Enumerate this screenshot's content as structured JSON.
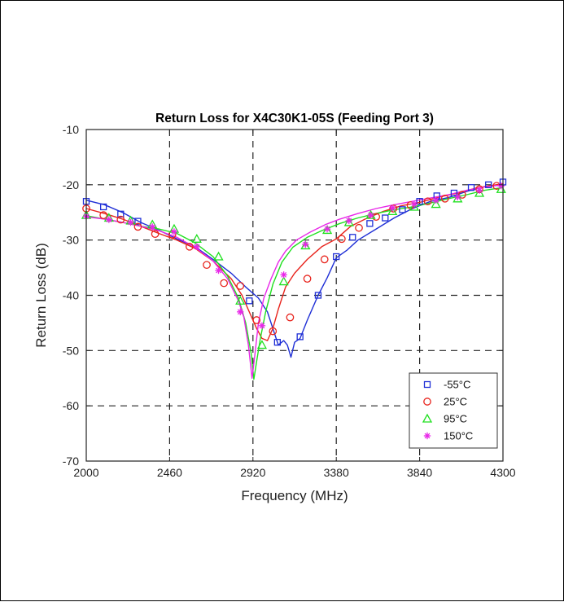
{
  "chart_data": {
    "type": "line",
    "title": "Return Loss for X4C30K1-05S (Feeding Port 3)",
    "xlabel": "Frequency (MHz)",
    "ylabel": "Return Loss (dB)",
    "xlim": [
      2000,
      4300
    ],
    "ylim": [
      -70,
      -10
    ],
    "xticks": [
      2000,
      2460,
      2920,
      3380,
      3840,
      4300
    ],
    "yticks": [
      -70,
      -60,
      -50,
      -40,
      -30,
      -20,
      -10
    ],
    "xtick_labels": [
      "2000",
      "2460",
      "2920",
      "3380",
      "3840",
      "4300"
    ],
    "ytick_labels": [
      "-70",
      "-60",
      "-50",
      "-40",
      "-30",
      "-20",
      "-10"
    ],
    "grid": "dashed",
    "legend_position": "bottom-right",
    "series": [
      {
        "name": "-55°C",
        "color": "#1f2fd6",
        "marker": "square",
        "line": [
          [
            2000,
            -22.8
          ],
          [
            2100,
            -23.6
          ],
          [
            2200,
            -25
          ],
          [
            2300,
            -26.8
          ],
          [
            2400,
            -28.2
          ],
          [
            2500,
            -29.8
          ],
          [
            2600,
            -31.2
          ],
          [
            2700,
            -33.5
          ],
          [
            2800,
            -36
          ],
          [
            2880,
            -38.5
          ],
          [
            2950,
            -40.5
          ],
          [
            3000,
            -43
          ],
          [
            3040,
            -47
          ],
          [
            3060,
            -49
          ],
          [
            3090,
            -48.2
          ],
          [
            3110,
            -49
          ],
          [
            3130,
            -51.2
          ],
          [
            3150,
            -48.5
          ],
          [
            3180,
            -47.8
          ],
          [
            3220,
            -44.5
          ],
          [
            3280,
            -40
          ],
          [
            3330,
            -36.8
          ],
          [
            3380,
            -33.2
          ],
          [
            3440,
            -31.8
          ],
          [
            3500,
            -30
          ],
          [
            3600,
            -28
          ],
          [
            3700,
            -26
          ],
          [
            3800,
            -24.3
          ],
          [
            3900,
            -23
          ],
          [
            4000,
            -22.3
          ],
          [
            4100,
            -21.2
          ],
          [
            4200,
            -20.3
          ],
          [
            4300,
            -20
          ]
        ],
        "markers": [
          [
            2000,
            -23
          ],
          [
            2095,
            -24
          ],
          [
            2190,
            -25.3
          ],
          [
            2285,
            -26.6
          ],
          [
            2900,
            -41
          ],
          [
            3055,
            -48.5
          ],
          [
            3180,
            -47.5
          ],
          [
            3280,
            -40
          ],
          [
            3380,
            -33
          ],
          [
            3470,
            -29.5
          ],
          [
            3565,
            -27
          ],
          [
            3650,
            -26
          ],
          [
            3745,
            -24.5
          ],
          [
            3840,
            -23
          ],
          [
            3935,
            -22
          ],
          [
            4030,
            -21.5
          ],
          [
            4125,
            -20.5
          ],
          [
            4220,
            -20
          ],
          [
            4300,
            -19.5
          ]
        ]
      },
      {
        "name": "25°C",
        "color": "#e8231c",
        "marker": "circle",
        "line": [
          [
            2000,
            -24.3
          ],
          [
            2100,
            -25.2
          ],
          [
            2200,
            -26.2
          ],
          [
            2300,
            -27.5
          ],
          [
            2400,
            -28.8
          ],
          [
            2500,
            -30
          ],
          [
            2600,
            -31.5
          ],
          [
            2700,
            -33.8
          ],
          [
            2800,
            -37
          ],
          [
            2860,
            -40
          ],
          [
            2900,
            -43
          ],
          [
            2940,
            -46
          ],
          [
            2970,
            -47.8
          ],
          [
            3000,
            -48.2
          ],
          [
            3030,
            -46
          ],
          [
            3060,
            -42.5
          ],
          [
            3100,
            -38.5
          ],
          [
            3150,
            -36
          ],
          [
            3220,
            -33.5
          ],
          [
            3300,
            -31.2
          ],
          [
            3380,
            -29.8
          ],
          [
            3460,
            -27.5
          ],
          [
            3540,
            -26.2
          ],
          [
            3640,
            -24.8
          ],
          [
            3740,
            -23.8
          ],
          [
            3840,
            -23.2
          ],
          [
            3950,
            -22.2
          ],
          [
            4050,
            -21.5
          ],
          [
            4150,
            -20.6
          ],
          [
            4300,
            -19.8
          ]
        ],
        "markers": [
          [
            2000,
            -24.3
          ],
          [
            2095,
            -25.5
          ],
          [
            2190,
            -26.3
          ],
          [
            2285,
            -27.6
          ],
          [
            2380,
            -28.9
          ],
          [
            2475,
            -29
          ],
          [
            2570,
            -31.2
          ],
          [
            2665,
            -34.5
          ],
          [
            2760,
            -37.8
          ],
          [
            2850,
            -38.3
          ],
          [
            2940,
            -44.5
          ],
          [
            3030,
            -46.5
          ],
          [
            3125,
            -44
          ],
          [
            3220,
            -37
          ],
          [
            3315,
            -33.5
          ],
          [
            3410,
            -29.8
          ],
          [
            3505,
            -27.8
          ],
          [
            3600,
            -25.8
          ],
          [
            3695,
            -24.3
          ],
          [
            3790,
            -23.7
          ],
          [
            3885,
            -23
          ],
          [
            3980,
            -22.5
          ],
          [
            4075,
            -21.8
          ],
          [
            4170,
            -20.8
          ],
          [
            4265,
            -20.2
          ]
        ]
      },
      {
        "name": "95°C",
        "color": "#1fe01f",
        "marker": "triangle",
        "line": [
          [
            2000,
            -25.6
          ],
          [
            2100,
            -26.2
          ],
          [
            2200,
            -26.8
          ],
          [
            2300,
            -27.5
          ],
          [
            2400,
            -28
          ],
          [
            2500,
            -28.8
          ],
          [
            2600,
            -30.5
          ],
          [
            2700,
            -33
          ],
          [
            2780,
            -36.5
          ],
          [
            2840,
            -40.5
          ],
          [
            2880,
            -45
          ],
          [
            2910,
            -50.5
          ],
          [
            2925,
            -55.2
          ],
          [
            2940,
            -52
          ],
          [
            2960,
            -48
          ],
          [
            2990,
            -43
          ],
          [
            3030,
            -38
          ],
          [
            3080,
            -34
          ],
          [
            3140,
            -31.3
          ],
          [
            3220,
            -29.5
          ],
          [
            3300,
            -28.3
          ],
          [
            3400,
            -27
          ],
          [
            3500,
            -26
          ],
          [
            3600,
            -25.2
          ],
          [
            3700,
            -24.5
          ],
          [
            3800,
            -24
          ],
          [
            3900,
            -23.3
          ],
          [
            4000,
            -22.5
          ],
          [
            4100,
            -21.8
          ],
          [
            4200,
            -21
          ],
          [
            4300,
            -20.5
          ]
        ],
        "markers": [
          [
            2000,
            -25.5
          ],
          [
            2125,
            -26
          ],
          [
            2245,
            -26.5
          ],
          [
            2365,
            -27.2
          ],
          [
            2485,
            -28
          ],
          [
            2610,
            -29.8
          ],
          [
            2730,
            -33
          ],
          [
            2850,
            -41
          ],
          [
            2970,
            -49
          ],
          [
            3090,
            -37.5
          ],
          [
            3210,
            -31
          ],
          [
            3330,
            -28.2
          ],
          [
            3450,
            -26.8
          ],
          [
            3570,
            -25.5
          ],
          [
            3690,
            -24.8
          ],
          [
            3810,
            -24
          ],
          [
            3930,
            -23.5
          ],
          [
            4050,
            -22.5
          ],
          [
            4170,
            -21.5
          ],
          [
            4290,
            -20.8
          ]
        ]
      },
      {
        "name": "150°C",
        "color": "#e827e8",
        "marker": "star",
        "line": [
          [
            2000,
            -25.8
          ],
          [
            2100,
            -26.2
          ],
          [
            2200,
            -26.8
          ],
          [
            2300,
            -27.5
          ],
          [
            2400,
            -28.3
          ],
          [
            2500,
            -29.5
          ],
          [
            2600,
            -31.3
          ],
          [
            2700,
            -33.8
          ],
          [
            2780,
            -37
          ],
          [
            2840,
            -41
          ],
          [
            2870,
            -44
          ],
          [
            2895,
            -49
          ],
          [
            2915,
            -55
          ],
          [
            2930,
            -51
          ],
          [
            2950,
            -45
          ],
          [
            2980,
            -40.5
          ],
          [
            3020,
            -37
          ],
          [
            3060,
            -34
          ],
          [
            3100,
            -32
          ],
          [
            3160,
            -30
          ],
          [
            3240,
            -28.5
          ],
          [
            3320,
            -27.2
          ],
          [
            3400,
            -26.2
          ],
          [
            3500,
            -25.2
          ],
          [
            3600,
            -24.3
          ],
          [
            3700,
            -23.6
          ],
          [
            3800,
            -23
          ],
          [
            3900,
            -22.4
          ],
          [
            4000,
            -21.8
          ],
          [
            4100,
            -21
          ],
          [
            4200,
            -20.4
          ],
          [
            4300,
            -20
          ]
        ],
        "markers": [
          [
            2000,
            -25.7
          ],
          [
            2125,
            -26.3
          ],
          [
            2245,
            -26.8
          ],
          [
            2365,
            -27.6
          ],
          [
            2485,
            -28.5
          ],
          [
            2610,
            -31.2
          ],
          [
            2730,
            -35.5
          ],
          [
            2850,
            -43
          ],
          [
            2970,
            -45.5
          ],
          [
            3090,
            -36.3
          ],
          [
            3210,
            -30.8
          ],
          [
            3330,
            -28
          ],
          [
            3450,
            -26.5
          ],
          [
            3570,
            -25.5
          ],
          [
            3690,
            -24.2
          ],
          [
            3810,
            -23.5
          ],
          [
            3930,
            -22.8
          ],
          [
            4050,
            -22.2
          ],
          [
            4170,
            -21
          ],
          [
            4290,
            -20.2
          ]
        ]
      }
    ]
  }
}
